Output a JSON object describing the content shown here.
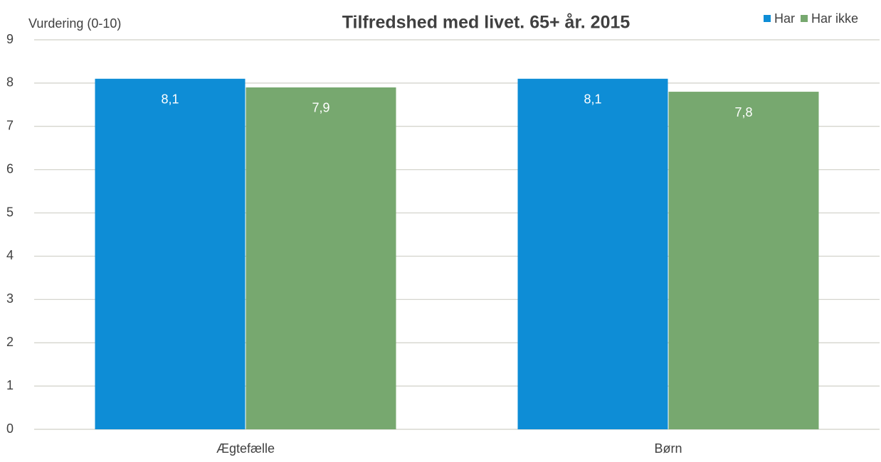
{
  "chart_data": {
    "type": "bar",
    "title": "Tilfredshed med livet. 65+ år. 2015",
    "y_label": "Vurdering (0-10)",
    "categories": [
      "Ægtefælle",
      "Børn"
    ],
    "series": [
      {
        "name": "Har",
        "color": "#0e8dd6",
        "values": [
          8.1,
          8.1
        ],
        "value_labels": [
          "8,1",
          "8,1"
        ]
      },
      {
        "name": "Har ikke",
        "color": "#77a86f",
        "values": [
          7.9,
          7.8
        ],
        "value_labels": [
          "7,9",
          "7,8"
        ]
      }
    ],
    "ylim": [
      0,
      9
    ],
    "yticks": [
      0,
      1,
      2,
      3,
      4,
      5,
      6,
      7,
      8,
      9
    ],
    "grid": true,
    "legend": "top-right"
  }
}
